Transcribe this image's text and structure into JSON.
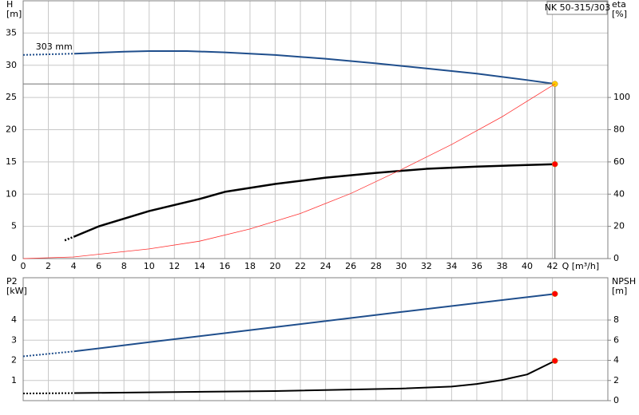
{
  "chart_data": [
    {
      "type": "line",
      "title": "NK 50-315/303",
      "annotation": "303 mm",
      "ylabel": "H",
      "yunit": "[m]",
      "y2label": "eta",
      "y2unit": "[%]",
      "xlabel": "Q [m³/h]",
      "xlim": [
        0,
        46.4
      ],
      "xticks": [
        0,
        2,
        4,
        6,
        8,
        10,
        12,
        14,
        16,
        18,
        20,
        22,
        24,
        26,
        28,
        30,
        32,
        34,
        36,
        38,
        40,
        42
      ],
      "ylim": [
        0,
        40
      ],
      "yticks": [
        0,
        5,
        10,
        15,
        20,
        25,
        30,
        35
      ],
      "y2lim": [
        0,
        160
      ],
      "y2ticks": [
        0,
        20,
        40,
        60,
        80,
        100
      ],
      "grid": true,
      "series": [
        {
          "color": "#1f4e8c",
          "dash_first": true,
          "end_marker": "#ffcc00",
          "operating_lines": true,
          "x": [
            0,
            4.1,
            8,
            10,
            13,
            16,
            20,
            24,
            28,
            32,
            36,
            40,
            42.2
          ],
          "values": [
            31.6,
            31.8,
            32.1,
            32.2,
            32.2,
            32.0,
            31.6,
            31.0,
            30.3,
            29.5,
            28.7,
            27.7,
            27.1
          ]
        },
        {
          "color": "#000000",
          "dash_first": true,
          "end_marker": "#ff0000",
          "axis": "y2",
          "width": 2.5,
          "x": [
            3.3,
            4.1,
            6,
            10,
            14,
            16,
            20,
            24,
            28,
            32,
            36,
            40,
            42.2
          ],
          "values": [
            11.3,
            13.8,
            20,
            29.5,
            37,
            41.4,
            46.3,
            50.2,
            53.2,
            55.7,
            57.1,
            58.1,
            58.6
          ]
        },
        {
          "color": "#ff3030",
          "width": 0.8,
          "x": [
            0,
            4,
            10,
            14,
            18,
            22,
            26,
            30,
            34,
            38,
            42.2
          ],
          "values": [
            0,
            0.25,
            1.5,
            2.7,
            4.6,
            7,
            10.1,
            13.8,
            17.7,
            22,
            27.1
          ]
        }
      ]
    },
    {
      "type": "line",
      "ylabel": "P2",
      "yunit": "[kW]",
      "y2label": "NPSH",
      "y2unit": "[m]",
      "xlim": [
        0,
        46.4
      ],
      "xticks": [
        0,
        2,
        4,
        6,
        8,
        10,
        12,
        14,
        16,
        18,
        20,
        22,
        24,
        26,
        28,
        30,
        32,
        34,
        36,
        38,
        40,
        42
      ],
      "ylim": [
        0,
        6.1
      ],
      "yticks": [
        1,
        2,
        3,
        4
      ],
      "y2lim": [
        0,
        12.2
      ],
      "y2ticks": [
        0,
        2,
        4,
        6,
        8
      ],
      "grid": true,
      "series": [
        {
          "color": "#1f4e8c",
          "dash_first": true,
          "end_marker": "#ff0000",
          "x": [
            0,
            4.1,
            10,
            20,
            30,
            42.2
          ],
          "values": [
            2.2,
            2.45,
            2.9,
            3.65,
            4.4,
            5.3
          ]
        },
        {
          "color": "#000000",
          "dash_first": true,
          "end_marker": "#ff0000",
          "axis": "y2",
          "x": [
            0,
            4.1,
            20,
            30,
            34,
            36,
            38,
            40,
            42.2
          ],
          "values": [
            0.71,
            0.75,
            0.95,
            1.2,
            1.4,
            1.65,
            2.05,
            2.6,
            3.95
          ]
        }
      ]
    }
  ]
}
